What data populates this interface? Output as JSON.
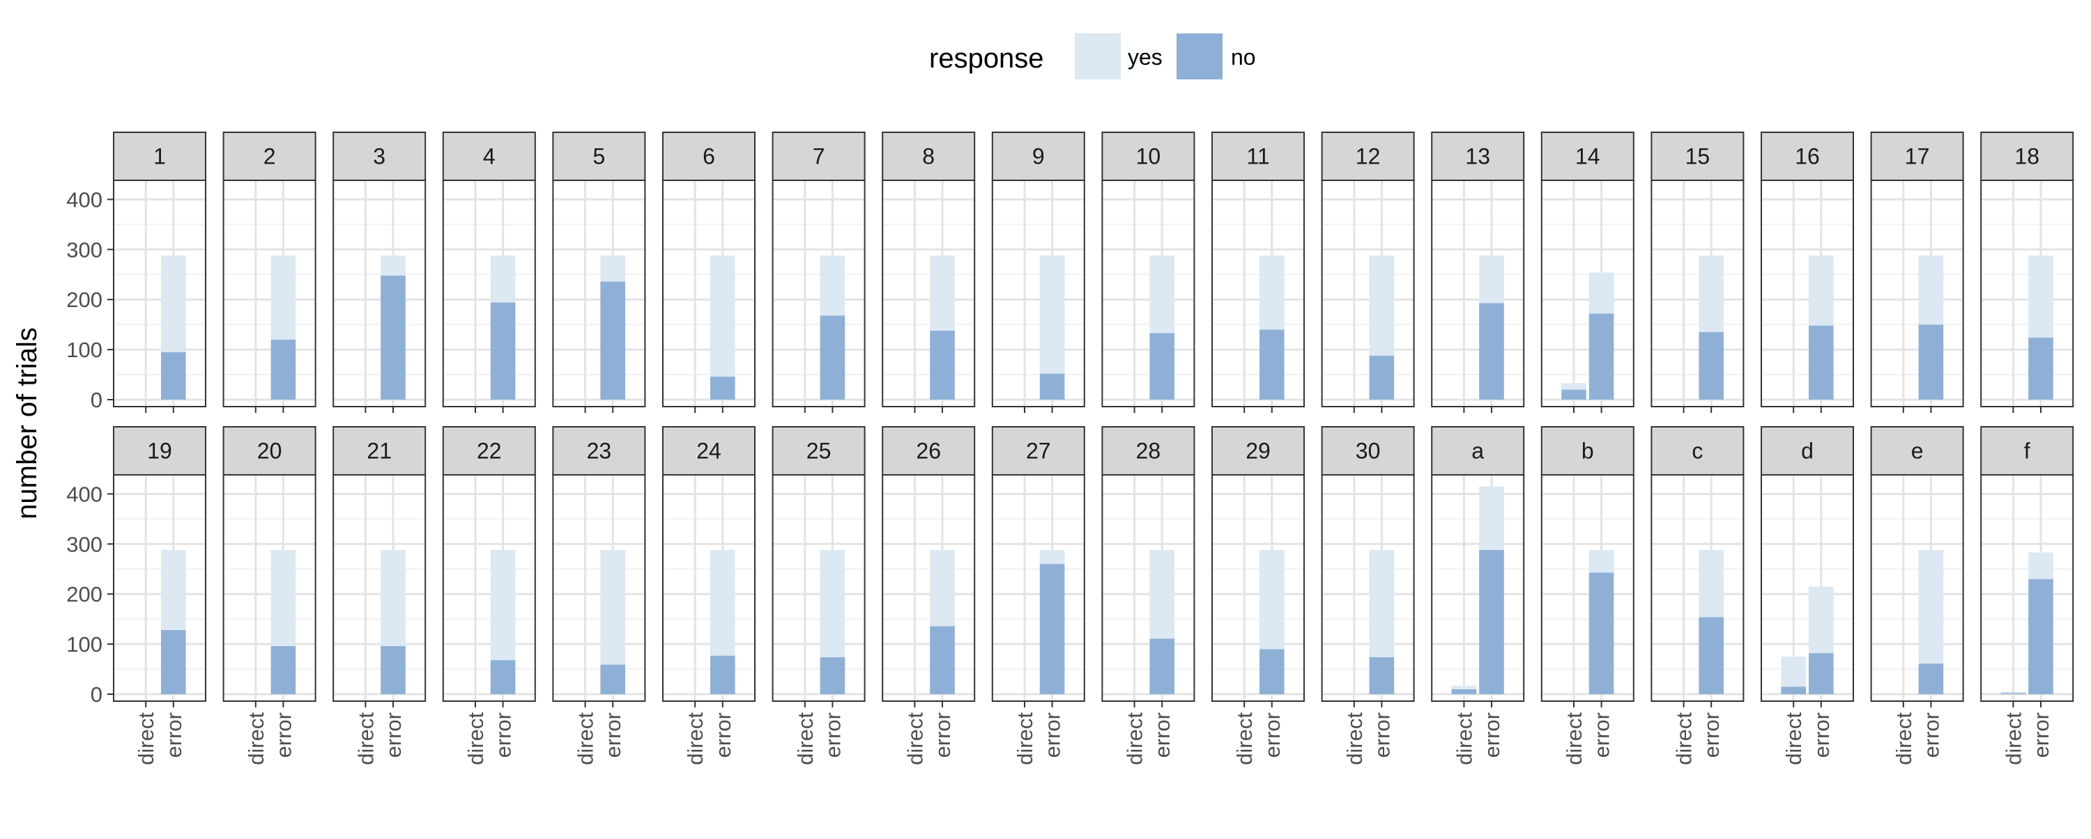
{
  "chart_data": {
    "type": "bar",
    "stacked": true,
    "facets": [
      "1",
      "2",
      "3",
      "4",
      "5",
      "6",
      "7",
      "8",
      "9",
      "10",
      "11",
      "12",
      "13",
      "14",
      "15",
      "16",
      "17",
      "18",
      "19",
      "20",
      "21",
      "22",
      "23",
      "24",
      "25",
      "26",
      "27",
      "28",
      "29",
      "30",
      "a",
      "b",
      "c",
      "d",
      "e",
      "f"
    ],
    "facet_rows": 2,
    "facet_cols": 18,
    "categories": [
      "direct",
      "error"
    ],
    "ylabel": "number of trials",
    "xlabel": "",
    "ylim": [
      0,
      400
    ],
    "yticks": [
      0,
      100,
      200,
      300,
      400
    ],
    "grid": true,
    "legend": {
      "title": "response",
      "position": "top",
      "entries": [
        {
          "label": "yes",
          "color": "#dce8f2"
        },
        {
          "label": "no",
          "color": "#8fb0d6"
        }
      ]
    },
    "series": [
      {
        "name": "yes",
        "color": "#dce8f2",
        "direct": [
          0,
          0,
          0,
          0,
          0,
          0,
          0,
          0,
          0,
          0,
          0,
          0,
          0,
          13,
          0,
          0,
          0,
          0,
          0,
          0,
          0,
          0,
          0,
          0,
          0,
          0,
          0,
          0,
          0,
          0,
          7,
          0,
          0,
          60,
          0,
          3
        ],
        "error": [
          193,
          168,
          40,
          94,
          52,
          242,
          120,
          150,
          236,
          155,
          148,
          200,
          95,
          82,
          153,
          140,
          138,
          164,
          160,
          192,
          192,
          220,
          229,
          211,
          214,
          152,
          28,
          177,
          198,
          214,
          127,
          45,
          134,
          133,
          227,
          53
        ]
      },
      {
        "name": "no",
        "color": "#8fb0d6",
        "direct": [
          0,
          0,
          0,
          0,
          0,
          0,
          0,
          0,
          0,
          0,
          0,
          0,
          0,
          20,
          0,
          0,
          0,
          0,
          0,
          0,
          0,
          0,
          0,
          0,
          0,
          0,
          0,
          0,
          0,
          0,
          10,
          0,
          0,
          15,
          0,
          2
        ],
        "error": [
          95,
          120,
          248,
          194,
          236,
          46,
          168,
          138,
          52,
          133,
          140,
          88,
          193,
          172,
          135,
          148,
          150,
          124,
          128,
          96,
          96,
          68,
          59,
          77,
          74,
          136,
          260,
          111,
          90,
          74,
          288,
          243,
          154,
          82,
          61,
          230
        ]
      }
    ]
  }
}
